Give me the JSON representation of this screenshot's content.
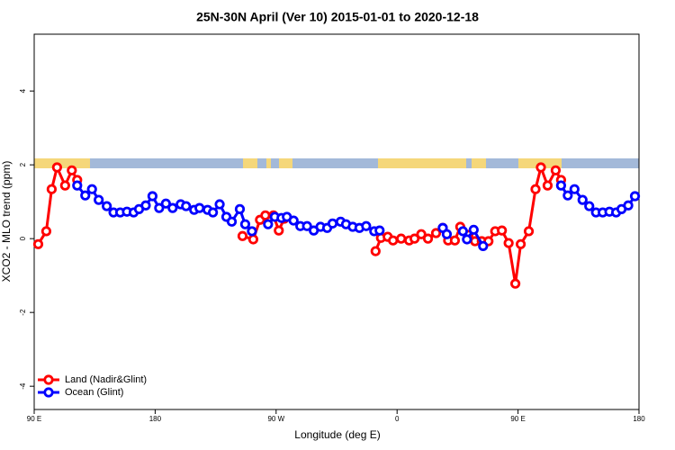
{
  "chart_data": {
    "type": "line",
    "title": "25N-30N April (Ver 10)   2015-01-01 to 2020-12-18",
    "x_label": "Longitude (deg E)",
    "y_label": "XCO2 - MLO trend (ppm)",
    "xlim": [
      90,
      540
    ],
    "ylim": [
      -4.63,
      5.54
    ],
    "xticks": [
      {
        "value": 90,
        "label": "90 E"
      },
      180,
      {
        "value": 270,
        "label": "90 W"
      },
      {
        "value": 360,
        "label": "0"
      },
      {
        "value": 450,
        "label": "90 E"
      },
      {
        "value": 540,
        "label": "180"
      }
    ],
    "yticks": [
      -4,
      -2,
      0,
      2,
      4
    ],
    "grid": false,
    "legend": "bottom-left",
    "series": [
      {
        "name": "Land (Nadir&Glint)",
        "color": "#ff0000",
        "x": [
          93,
          99,
          103,
          107,
          113,
          118,
          122,
          null,
          245,
          253,
          258,
          262,
          268,
          272,
          276,
          null,
          344,
          348,
          353,
          357,
          363,
          369,
          373,
          378,
          383,
          389,
          394,
          398,
          403,
          407,
          413,
          418,
          423,
          428,
          433,
          438,
          443,
          448,
          452,
          458,
          463,
          467,
          472,
          478,
          482
        ],
        "values": [
          -0.15,
          0.2,
          1.34,
          1.93,
          1.44,
          1.85,
          1.59,
          null,
          0.07,
          -0.02,
          0.51,
          0.63,
          0.63,
          0.22,
          0.54,
          null,
          -0.34,
          0.02,
          0.05,
          -0.05,
          0,
          -0.05,
          0,
          0.12,
          0,
          0.15,
          0.29,
          -0.05,
          -0.05,
          0.32,
          0.1,
          -0.07,
          -0.07,
          -0.07,
          0.2,
          0.22,
          -0.12,
          -1.22,
          -0.15,
          0.2,
          1.34,
          1.93,
          1.44,
          1.85,
          1.59
        ]
      },
      {
        "name": "Ocean (Glint)",
        "color": "#0000ff",
        "x": [
          122,
          128,
          133,
          138,
          144,
          149,
          154,
          159,
          164,
          168,
          173,
          178,
          183,
          188,
          193,
          199,
          203,
          209,
          213,
          219,
          223,
          228,
          233,
          237,
          243,
          247,
          252,
          null,
          264,
          269,
          274,
          278,
          283,
          288,
          293,
          298,
          303,
          308,
          312,
          318,
          322,
          327,
          332,
          337,
          343,
          347,
          null,
          394,
          397,
          null,
          409,
          412,
          417,
          424,
          null,
          482,
          487,
          492,
          498,
          503,
          508,
          513,
          518,
          523,
          527,
          532,
          537
        ],
        "values": [
          1.44,
          1.17,
          1.34,
          1.05,
          0.88,
          0.71,
          0.71,
          0.73,
          0.71,
          0.8,
          0.9,
          1.15,
          0.83,
          0.95,
          0.83,
          0.93,
          0.88,
          0.78,
          0.83,
          0.78,
          0.71,
          0.93,
          0.59,
          0.46,
          0.8,
          0.39,
          0.2,
          null,
          0.39,
          0.59,
          0.56,
          0.59,
          0.49,
          0.34,
          0.34,
          0.22,
          0.32,
          0.29,
          0.41,
          0.46,
          0.39,
          0.32,
          0.29,
          0.34,
          0.2,
          0.22,
          null,
          0.29,
          0.12,
          null,
          0.2,
          -0.02,
          0.24,
          -0.2,
          null,
          1.44,
          1.17,
          1.34,
          1.05,
          0.88,
          0.71,
          0.71,
          0.73,
          0.71,
          0.8,
          0.9,
          1.15
        ]
      }
    ]
  }
}
